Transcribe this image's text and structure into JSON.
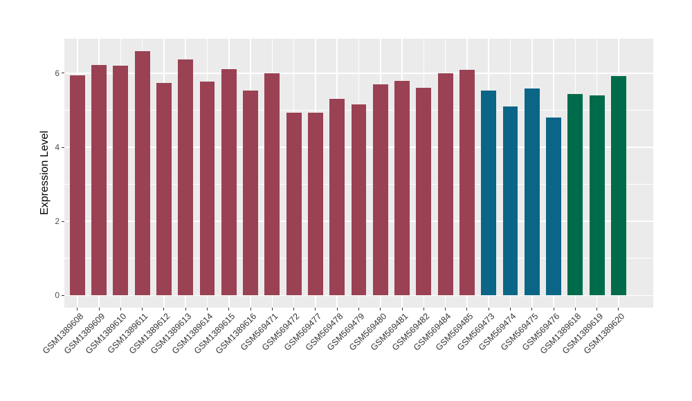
{
  "figure": {
    "background": "#FFFFFF"
  },
  "chart_data": {
    "type": "bar",
    "title": "",
    "xlabel": "",
    "ylabel": "Expression Level",
    "ylim": [
      -0.33,
      6.93
    ],
    "yticks": [
      0,
      2,
      4,
      6
    ],
    "yticks_minor": [
      1,
      3,
      5
    ],
    "grid": "on",
    "legend": "none",
    "panel_background": "#EBEBEB",
    "gridline_color": "#FFFFFF",
    "tick_mark_color": "#333333",
    "tick_label_color": "#4D4D4D",
    "axis_title_color": "#000000",
    "categories": [
      "GSM1389608",
      "GSM1389609",
      "GSM1389610",
      "GSM1389611",
      "GSM1389612",
      "GSM1389613",
      "GSM1389614",
      "GSM1389615",
      "GSM1389616",
      "GSM569471",
      "GSM569472",
      "GSM569477",
      "GSM569478",
      "GSM569479",
      "GSM569480",
      "GSM569481",
      "GSM569482",
      "GSM569484",
      "GSM569485",
      "GSM569473",
      "GSM569474",
      "GSM569475",
      "GSM569476",
      "GSM1389618",
      "GSM1389619",
      "GSM1389620"
    ],
    "values": [
      5.95,
      6.23,
      6.21,
      6.6,
      5.73,
      6.37,
      5.78,
      6.11,
      5.53,
      6.0,
      4.93,
      4.93,
      5.3,
      5.16,
      5.69,
      5.79,
      5.6,
      6.0,
      6.09,
      5.54,
      5.11,
      5.58,
      4.8,
      5.43,
      5.4,
      5.92
    ],
    "groups": [
      "maroon",
      "maroon",
      "maroon",
      "maroon",
      "maroon",
      "maroon",
      "maroon",
      "maroon",
      "maroon",
      "maroon",
      "maroon",
      "maroon",
      "maroon",
      "maroon",
      "maroon",
      "maroon",
      "maroon",
      "maroon",
      "maroon",
      "teal",
      "teal",
      "teal",
      "teal",
      "green",
      "green",
      "green"
    ],
    "palette": {
      "maroon": "#9A4153",
      "teal": "#0B6587",
      "green": "#006B4B"
    }
  }
}
